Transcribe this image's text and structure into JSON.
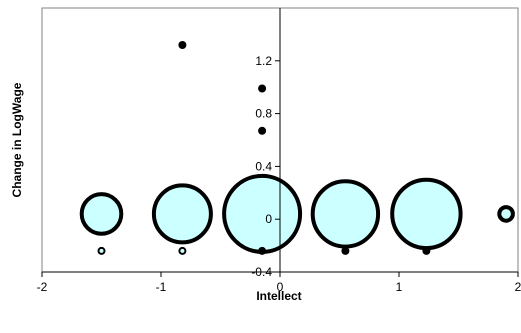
{
  "chart_data": {
    "type": "scatter",
    "variant": "bubble",
    "title": "",
    "xlabel": "Intellect",
    "ylabel": "Change in LogWage",
    "xlim": [
      -2,
      2
    ],
    "ylim": [
      -0.4,
      1.6
    ],
    "x_ticks": [
      {
        "value": -2,
        "label": "-2"
      },
      {
        "value": -1,
        "label": "-1"
      },
      {
        "value": 0,
        "label": "0"
      },
      {
        "value": 1,
        "label": "1"
      },
      {
        "value": 2,
        "label": "2"
      }
    ],
    "y_ticks": [
      {
        "value": -0.4,
        "label": "-0.4"
      },
      {
        "value": 0,
        "label": "0"
      },
      {
        "value": 0.4,
        "label": "0.4"
      },
      {
        "value": 0.8,
        "label": "0.8"
      },
      {
        "value": 1.2,
        "label": "1.2"
      }
    ],
    "grid": false,
    "legend": "none",
    "colors": {
      "bubble_fill": "#ccffff",
      "bubble_outline": "#000000",
      "point": "#000000",
      "axis": "#000000",
      "frame": "#808080"
    },
    "bubbles": [
      {
        "x": -1.5,
        "y": 0.04,
        "size": 0.52
      },
      {
        "x": -0.82,
        "y": 0.04,
        "size": 0.75
      },
      {
        "x": -0.15,
        "y": 0.04,
        "size": 1.0
      },
      {
        "x": 0.55,
        "y": 0.04,
        "size": 0.86
      },
      {
        "x": 1.23,
        "y": 0.04,
        "size": 0.9
      },
      {
        "x": 1.9,
        "y": 0.04,
        "size": 0.18
      },
      {
        "x": -1.5,
        "y": -0.24,
        "size": 0.08
      },
      {
        "x": -0.82,
        "y": -0.24,
        "size": 0.08
      }
    ],
    "points": [
      {
        "x": -0.82,
        "y": 1.32
      },
      {
        "x": -0.15,
        "y": 0.99
      },
      {
        "x": -0.15,
        "y": 0.67
      },
      {
        "x": -0.15,
        "y": -0.24
      },
      {
        "x": 0.55,
        "y": -0.24
      },
      {
        "x": 1.23,
        "y": -0.24
      }
    ]
  }
}
